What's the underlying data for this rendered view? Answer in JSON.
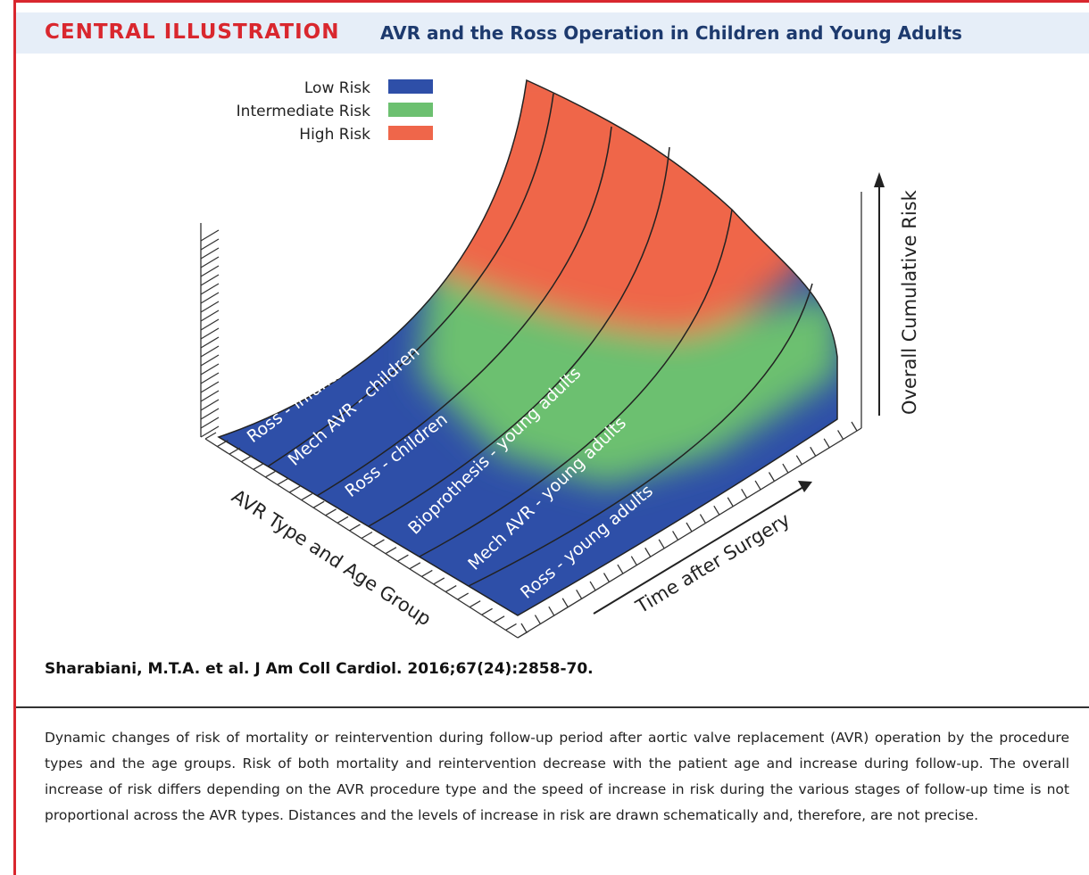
{
  "header": {
    "label": "CENTRAL ILLUSTRATION",
    "title": "AVR and the Ross Operation in Children and Young Adults"
  },
  "legend": [
    {
      "label": "Low Risk",
      "color": "#2e4fa8"
    },
    {
      "label": "Intermediate Risk",
      "color": "#6cc070"
    },
    {
      "label": "High Risk",
      "color": "#ef664a"
    }
  ],
  "surface_labels": [
    "Ross - infants",
    "Mech AVR - children",
    "Ross - children",
    "Bioprothesis - young adults",
    "Mech AVR - young adults",
    "Ross - young adults"
  ],
  "axes": {
    "group": "AVR Type and Age Group",
    "time": "Time after Surgery",
    "risk": "Overall Cumulative Risk"
  },
  "citation": "Sharabiani, M.T.A. et al. J Am Coll Cardiol. 2016;67(24):2858-70.",
  "caption": "Dynamic changes of risk of mortality or reintervention during follow-up period after aortic valve replacement (AVR) operation by the procedure types and the age groups. Risk of both mortality and reintervention decrease with the patient age and increase during follow-up. The overall increase of risk differs depending on the AVR procedure type and the speed of increase in risk during the various stages of follow-up time is not proportional across the AVR types. Distances and the levels of increase in risk are drawn schematically and, therefore, are not precise."
}
